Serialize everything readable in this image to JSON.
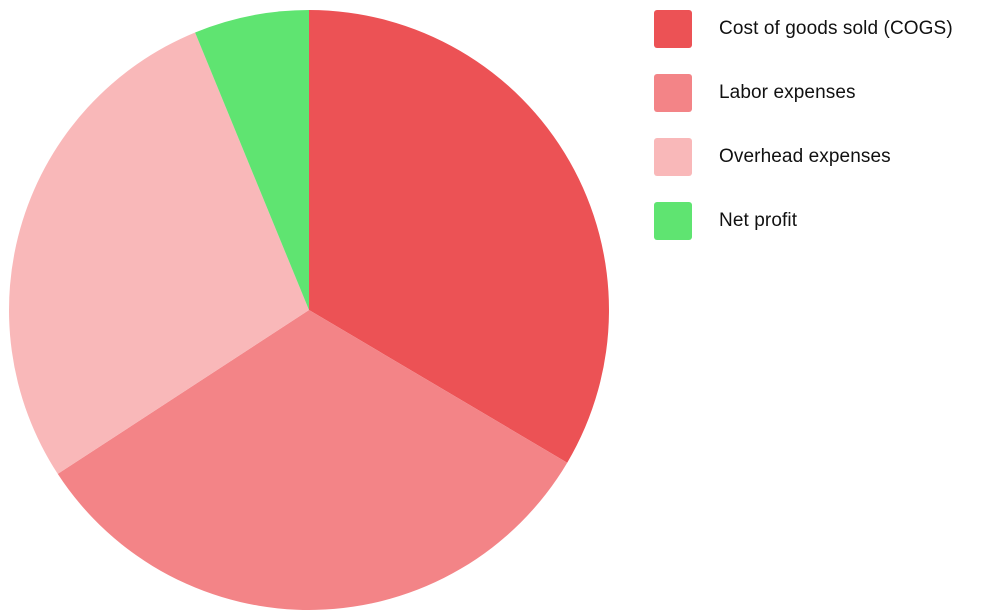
{
  "chart_data": {
    "type": "pie",
    "title": "",
    "start_angle_deg": 0,
    "direction": "clockwise",
    "legend_position": "right",
    "slices": [
      {
        "label": "Cost of goods sold (COGS)",
        "value": 33.5,
        "color": "#ec5255"
      },
      {
        "label": "Labor expenses",
        "value": 32.3,
        "color": "#f38487"
      },
      {
        "label": "Overhead expenses",
        "value": 28.0,
        "color": "#f9b8b9"
      },
      {
        "label": "Net profit",
        "value": 6.2,
        "color": "#5fe471"
      }
    ]
  }
}
